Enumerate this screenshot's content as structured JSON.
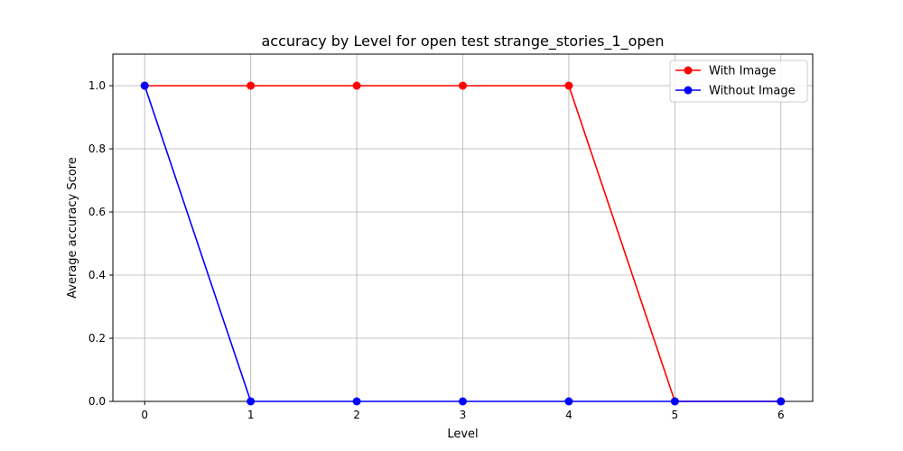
{
  "chart_data": {
    "type": "line",
    "title": "accuracy by Level for open test strange_stories_1_open",
    "xlabel": "Level",
    "ylabel": "Average accuracy Score",
    "x": [
      0,
      1,
      2,
      3,
      4,
      5,
      6
    ],
    "xlim": [
      -0.3,
      6.3
    ],
    "ylim": [
      0,
      1.1
    ],
    "xticks": [
      "0",
      "1",
      "2",
      "3",
      "4",
      "5",
      "6"
    ],
    "yticks": [
      "0.0",
      "0.2",
      "0.4",
      "0.6",
      "0.8",
      "1.0"
    ],
    "grid": true,
    "legend_position": "top-right",
    "series": [
      {
        "name": "With Image",
        "color": "#ff0000",
        "marker": "circle",
        "values": [
          1,
          1,
          1,
          1,
          1,
          0,
          0
        ]
      },
      {
        "name": "Without Image",
        "color": "#0000ff",
        "marker": "circle",
        "values": [
          1,
          0,
          0,
          0,
          0,
          0,
          0
        ]
      }
    ]
  }
}
